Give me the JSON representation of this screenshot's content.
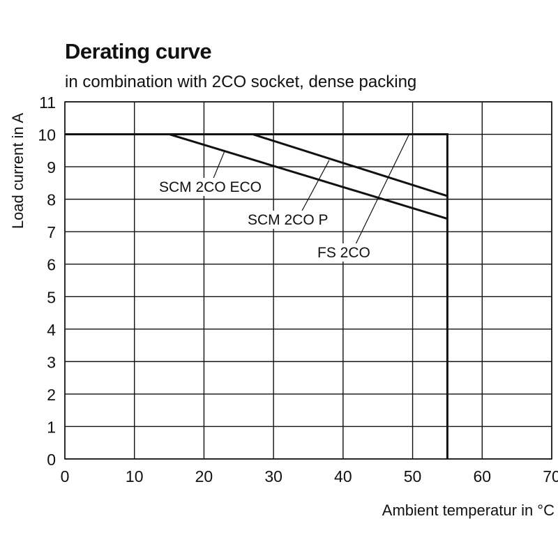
{
  "chart_data": {
    "type": "line",
    "title": "Derating curve",
    "subtitle": "in combination with 2CO socket, dense packing",
    "xlabel": "Ambient temperatur in °C",
    "ylabel": "Load  current in A",
    "xlim": [
      0,
      70
    ],
    "ylim": [
      0,
      11
    ],
    "x_ticks": [
      "0",
      "10",
      "20",
      "30",
      "40",
      "50",
      "60",
      "70"
    ],
    "y_ticks": [
      "0",
      "1",
      "2",
      "3",
      "4",
      "5",
      "6",
      "7",
      "8",
      "9",
      "10",
      "11"
    ],
    "grid": true,
    "series": [
      {
        "name": "SCM 2CO ECO",
        "x": [
          0,
          15,
          55
        ],
        "y": [
          10,
          10,
          7.4
        ]
      },
      {
        "name": "SCM 2CO P",
        "x": [
          0,
          27,
          55
        ],
        "y": [
          10,
          10,
          8.1
        ]
      },
      {
        "name": "FS 2CO",
        "x": [
          0,
          55,
          55
        ],
        "y": [
          10,
          10,
          0
        ]
      }
    ],
    "annotations": [
      {
        "text": "SCM 2CO ECO",
        "series": "SCM 2CO ECO",
        "points_to": [
          23,
          9.5
        ]
      },
      {
        "text": "SCM 2CO P",
        "series": "SCM 2CO P",
        "points_to": [
          38,
          9.2
        ]
      },
      {
        "text": "FS 2CO",
        "series": "FS 2CO",
        "points_to": [
          49.5,
          10
        ]
      }
    ]
  }
}
